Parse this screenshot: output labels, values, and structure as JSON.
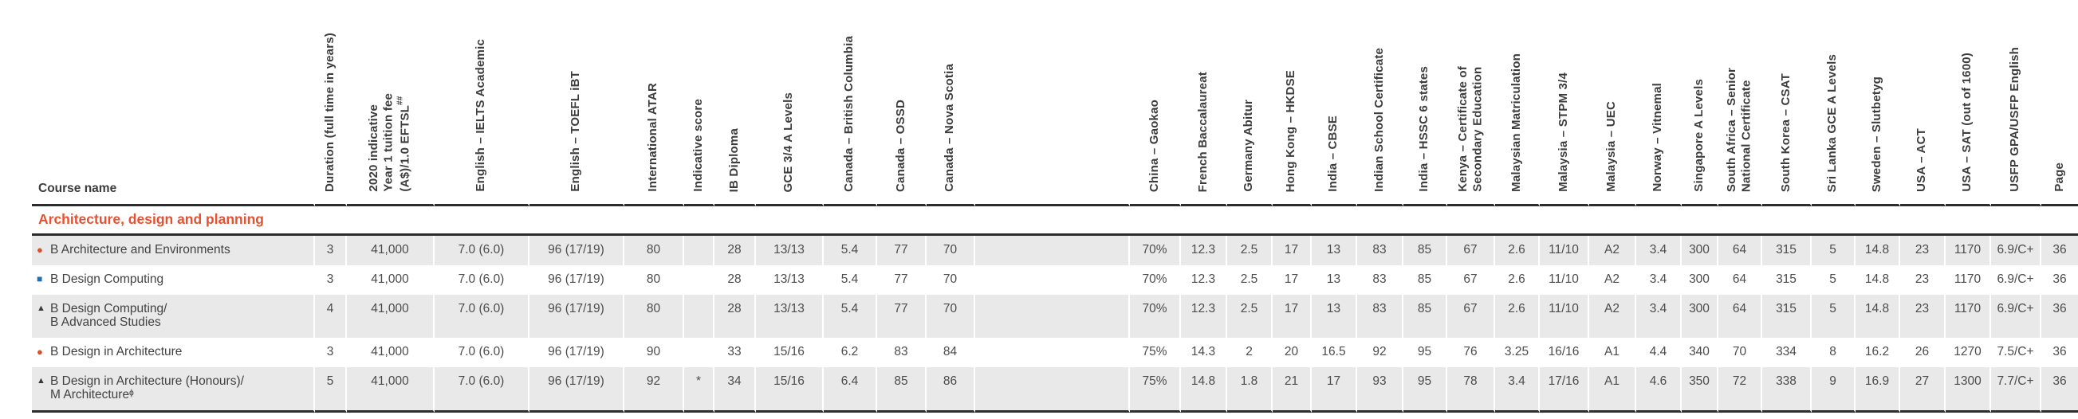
{
  "colors": {
    "section_heading": "#e8502f",
    "marker_circle": "#d6522f",
    "marker_square": "#1e6fb4",
    "marker_triangle": "#3a3a3a",
    "row_shade": "#e9e9e9",
    "rule": "#2d2d2d",
    "text": "#4c4c4c"
  },
  "table": {
    "course_column_header": "Course name",
    "marker_glyphs": {
      "circle": "●",
      "square": "■",
      "triangle": "▲"
    },
    "columns": [
      {
        "id": "duration",
        "label": "Duration (full time in years)"
      },
      {
        "id": "fee",
        "label": "2020 indicative\nYear 1 tuition fee\n(A$)/1.0 EFTSL##"
      },
      {
        "id": "ielts",
        "label": "English – IELTS Academic"
      },
      {
        "id": "toefl",
        "label": "English – TOEFL iBT"
      },
      {
        "id": "atar",
        "label": "International ATAR"
      },
      {
        "id": "indicative",
        "label": "Indicative score"
      },
      {
        "id": "ib",
        "label": "IB Diploma"
      },
      {
        "id": "gce",
        "label": "GCE 3/4 A Levels"
      },
      {
        "id": "canada_bc",
        "label": "Canada – British Columbia"
      },
      {
        "id": "canada_ossd",
        "label": "Canada – OSSD"
      },
      {
        "id": "canada_ns",
        "label": "Canada – Nova Scotia"
      },
      {
        "id": "spacer",
        "label": ""
      },
      {
        "id": "gaokao",
        "label": "China – Gaokao"
      },
      {
        "id": "french_bac",
        "label": "French Baccalaureat"
      },
      {
        "id": "abitur",
        "label": "Germany Abitur"
      },
      {
        "id": "hkdse",
        "label": "Hong Kong – HKDSE"
      },
      {
        "id": "cbse",
        "label": "India – CBSE"
      },
      {
        "id": "isc",
        "label": "Indian School Certificate"
      },
      {
        "id": "hssc",
        "label": "India – HSSC 6 states"
      },
      {
        "id": "kenya",
        "label": "Kenya – Certificate of\nSecondary Education"
      },
      {
        "id": "matric",
        "label": "Malaysian Matriculation"
      },
      {
        "id": "stpm",
        "label": "Malaysia – STPM 3/4"
      },
      {
        "id": "uec",
        "label": "Malaysia – UEC"
      },
      {
        "id": "norway",
        "label": "Norway – Vitnemal"
      },
      {
        "id": "singapore",
        "label": "Singapore A Levels"
      },
      {
        "id": "south_africa",
        "label": "South Africa – Senior\nNational Certificate"
      },
      {
        "id": "csat",
        "label": "South Korea – CSAT"
      },
      {
        "id": "sri_lanka",
        "label": "Sri Lanka GCE A Levels"
      },
      {
        "id": "sweden",
        "label": "Sweden – Slutbetyg"
      },
      {
        "id": "act",
        "label": "USA – ACT"
      },
      {
        "id": "sat",
        "label": "USA – SAT (out of 1600)"
      },
      {
        "id": "usfp",
        "label": "USFP GPA/USFP English"
      },
      {
        "id": "page",
        "label": "Page"
      }
    ],
    "section_title": "Architecture, design and planning",
    "rows": [
      {
        "marker": "circle",
        "name_lines": [
          "B Architecture and Environments"
        ],
        "values": [
          "3",
          "41,000",
          "7.0 (6.0)",
          "96 (17/19)",
          "80",
          "",
          "28",
          "13/13",
          "5.4",
          "77",
          "70",
          "",
          "70%",
          "12.3",
          "2.5",
          "17",
          "13",
          "83",
          "85",
          "67",
          "2.6",
          "11/10",
          "A2",
          "3.4",
          "300",
          "64",
          "315",
          "5",
          "14.8",
          "23",
          "1170",
          "6.9/C+",
          "36"
        ]
      },
      {
        "marker": "square",
        "name_lines": [
          "B Design Computing"
        ],
        "values": [
          "3",
          "41,000",
          "7.0 (6.0)",
          "96 (17/19)",
          "80",
          "",
          "28",
          "13/13",
          "5.4",
          "77",
          "70",
          "",
          "70%",
          "12.3",
          "2.5",
          "17",
          "13",
          "83",
          "85",
          "67",
          "2.6",
          "11/10",
          "A2",
          "3.4",
          "300",
          "64",
          "315",
          "5",
          "14.8",
          "23",
          "1170",
          "6.9/C+",
          "36"
        ]
      },
      {
        "marker": "triangle",
        "name_lines": [
          "B Design Computing/",
          "B Advanced Studies"
        ],
        "values": [
          "4",
          "41,000",
          "7.0 (6.0)",
          "96 (17/19)",
          "80",
          "",
          "28",
          "13/13",
          "5.4",
          "77",
          "70",
          "",
          "70%",
          "12.3",
          "2.5",
          "17",
          "13",
          "83",
          "85",
          "67",
          "2.6",
          "11/10",
          "A2",
          "3.4",
          "300",
          "64",
          "315",
          "5",
          "14.8",
          "23",
          "1170",
          "6.9/C+",
          "36"
        ]
      },
      {
        "marker": "circle",
        "name_lines": [
          "B Design in Architecture"
        ],
        "values": [
          "3",
          "41,000",
          "7.0 (6.0)",
          "96 (17/19)",
          "90",
          "",
          "33",
          "15/16",
          "6.2",
          "83",
          "84",
          "",
          "75%",
          "14.3",
          "2",
          "20",
          "16.5",
          "92",
          "95",
          "76",
          "3.25",
          "16/16",
          "A1",
          "4.4",
          "340",
          "70",
          "334",
          "8",
          "16.2",
          "26",
          "1270",
          "7.5/C+",
          "36"
        ]
      },
      {
        "marker": "triangle",
        "name_lines": [
          "B Design in Architecture (Honours)/",
          "M Architectureᶲ"
        ],
        "values": [
          "5",
          "41,000",
          "7.0 (6.0)",
          "96 (17/19)",
          "92",
          "*",
          "34",
          "15/16",
          "6.4",
          "85",
          "86",
          "",
          "75%",
          "14.8",
          "1.8",
          "21",
          "17",
          "93",
          "95",
          "78",
          "3.4",
          "17/16",
          "A1",
          "4.6",
          "350",
          "72",
          "338",
          "9",
          "16.9",
          "27",
          "1300",
          "7.7/C+",
          "36"
        ]
      }
    ]
  }
}
